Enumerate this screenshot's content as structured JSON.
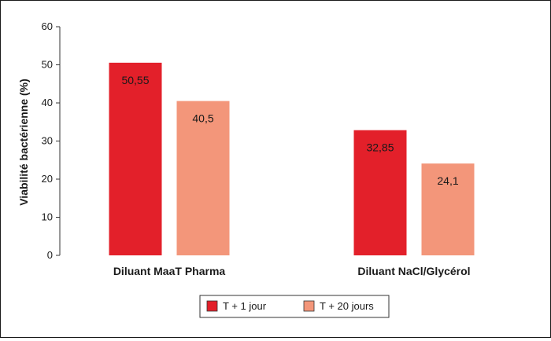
{
  "chart_data": {
    "type": "bar",
    "categories": [
      "Diluant MaaT Pharma",
      "Diluant NaCl/Glycérol"
    ],
    "series": [
      {
        "name": "T + 1 jour",
        "values": [
          50.55,
          32.85
        ],
        "labels": [
          "50,55",
          "32,85"
        ],
        "color": "#e3202a"
      },
      {
        "name": "T + 20 jours",
        "values": [
          40.5,
          24.1
        ],
        "labels": [
          "40,5",
          "24,1"
        ],
        "color": "#f3967a"
      }
    ],
    "ylabel": "Viabilité bactérienne (%)",
    "xlabel": "",
    "ylim": [
      0,
      60
    ],
    "yticks": [
      0,
      10,
      20,
      30,
      40,
      50,
      60
    ],
    "grid": false,
    "legend_position": "bottom-center"
  }
}
